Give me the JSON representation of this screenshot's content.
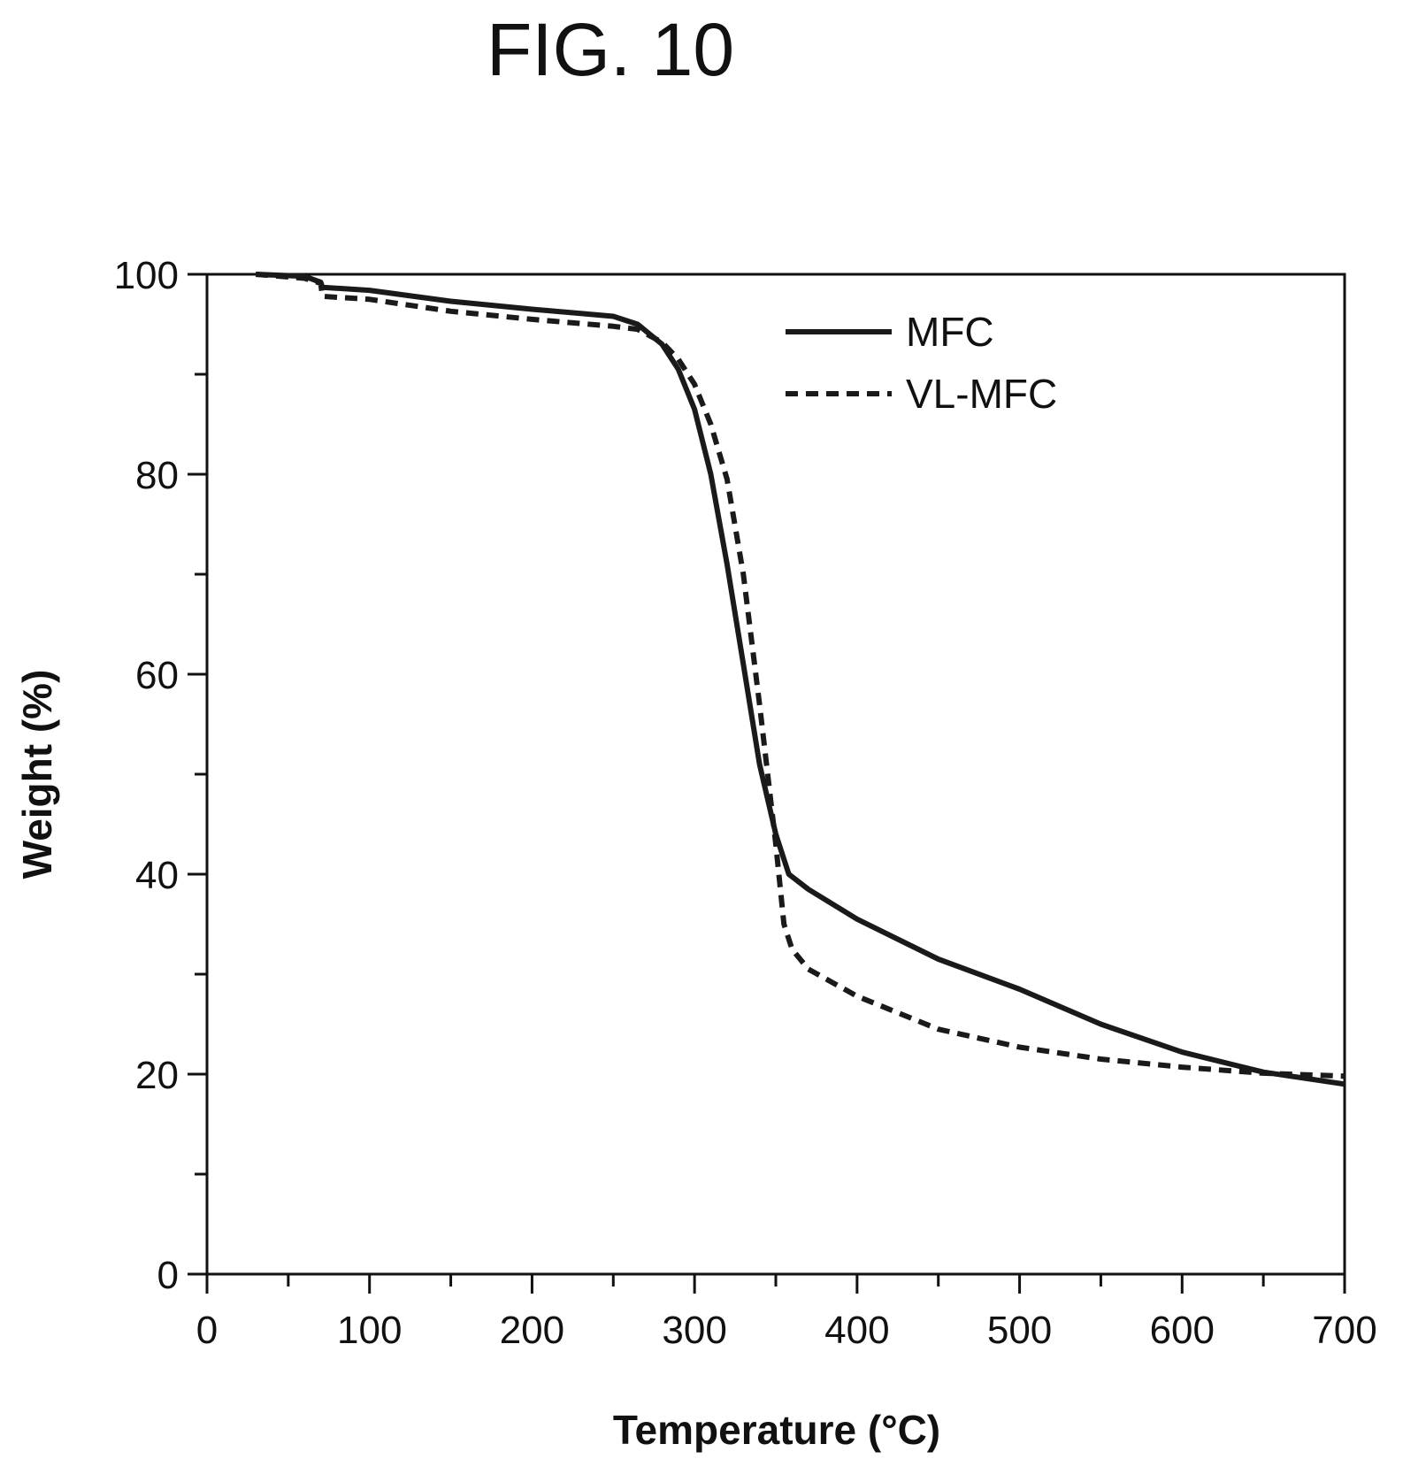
{
  "figure_title": "FIG. 10",
  "chart_data": {
    "type": "line",
    "xlabel": "Temperature (°C)",
    "ylabel": "Weight (%)",
    "xlim": [
      0,
      700
    ],
    "ylim": [
      0,
      100
    ],
    "x_ticks": [
      0,
      100,
      200,
      300,
      400,
      500,
      600,
      700
    ],
    "y_ticks": [
      0,
      20,
      40,
      60,
      80,
      100
    ],
    "x_minor_step": 50,
    "y_minor_step": 10,
    "grid": false,
    "legend_position": "top-right",
    "series": [
      {
        "name": "MFC",
        "style": "solid",
        "color": "#1a1a1a",
        "points": [
          [
            30,
            100
          ],
          [
            60,
            99.8
          ],
          [
            70,
            99.2
          ],
          [
            71,
            98.7
          ],
          [
            100,
            98.4
          ],
          [
            150,
            97.3
          ],
          [
            200,
            96.5
          ],
          [
            250,
            95.8
          ],
          [
            265,
            95
          ],
          [
            280,
            93
          ],
          [
            290,
            90.5
          ],
          [
            300,
            86.5
          ],
          [
            310,
            80
          ],
          [
            320,
            71
          ],
          [
            330,
            61
          ],
          [
            340,
            51
          ],
          [
            350,
            44
          ],
          [
            358,
            40
          ],
          [
            370,
            38.5
          ],
          [
            400,
            35.5
          ],
          [
            450,
            31.5
          ],
          [
            500,
            28.5
          ],
          [
            550,
            25
          ],
          [
            600,
            22.2
          ],
          [
            650,
            20.2
          ],
          [
            700,
            19
          ]
        ]
      },
      {
        "name": "VL-MFC",
        "style": "dashed",
        "color": "#1a1a1a",
        "points": [
          [
            30,
            100
          ],
          [
            60,
            99.6
          ],
          [
            70,
            99.1
          ],
          [
            71,
            97.8
          ],
          [
            100,
            97.5
          ],
          [
            150,
            96.3
          ],
          [
            200,
            95.5
          ],
          [
            250,
            94.8
          ],
          [
            265,
            94.5
          ],
          [
            280,
            93.2
          ],
          [
            290,
            91.5
          ],
          [
            300,
            89
          ],
          [
            310,
            85
          ],
          [
            320,
            79.5
          ],
          [
            330,
            70
          ],
          [
            340,
            57
          ],
          [
            350,
            43
          ],
          [
            355,
            35
          ],
          [
            360,
            32.5
          ],
          [
            370,
            30.5
          ],
          [
            400,
            27.8
          ],
          [
            450,
            24.5
          ],
          [
            500,
            22.7
          ],
          [
            550,
            21.5
          ],
          [
            600,
            20.7
          ],
          [
            650,
            20.1
          ],
          [
            700,
            19.8
          ]
        ]
      }
    ]
  }
}
